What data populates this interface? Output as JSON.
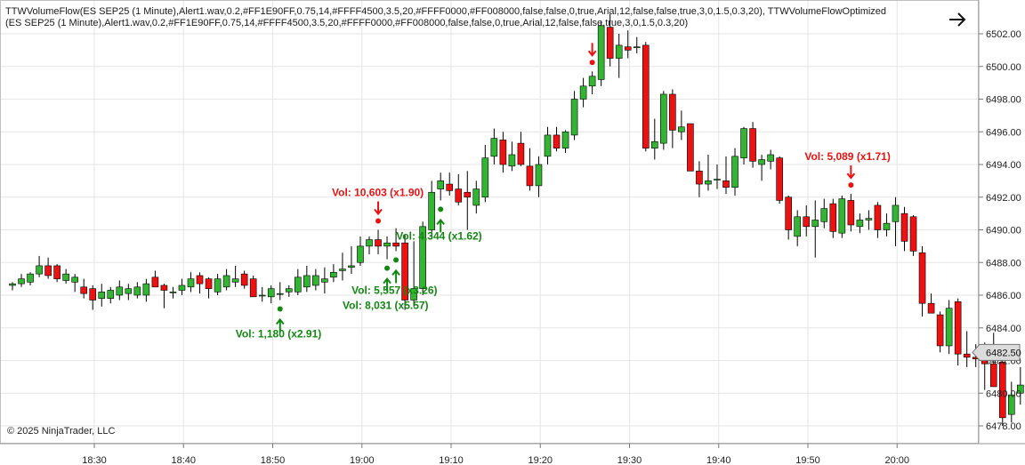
{
  "indicator_label": "TTWVolumeFlow(ES SEP25 (1 Minute),Alert1.wav,0.2,#FF1E90FF,0.75,14,#FFFF4500,3.5,20,#FFFF0000,#FF008000,false,false,0,true,Arial,12,false,false,true,3,0,1.5,0.3,20), TTWVolumeFlowOptimized(ES SEP25 (1 Minute),Alert1.wav,0.2,#FF1E90FF,0.75,14,#FFFF4500,3.5,20,#FFFF0000,#FF008000,false,false,0,true,Arial,12,false,false,true,3,0,1.5,0.3,20)",
  "copyright": "© 2025 NinjaTrader, LLC",
  "nav_icon": "arrow-right-icon",
  "colors": {
    "up": "#33b533",
    "down": "#ee1111",
    "signal_up": "#118811",
    "signal_down": "#ee1111",
    "grid": "#e6e6e6"
  },
  "chart_data": {
    "type": "candlestick",
    "y_ticks": [
      "6478.00",
      "6480.00",
      "6482.00",
      "6484.00",
      "6486.00",
      "6488.00",
      "6490.00",
      "6492.00",
      "6494.00",
      "6496.00",
      "6498.00",
      "6500.00",
      "6502.00"
    ],
    "x_ticks": [
      "18:30",
      "18:40",
      "18:50",
      "19:00",
      "19:10",
      "19:20",
      "19:30",
      "19:40",
      "19:50",
      "20:00"
    ],
    "last_price": "6482.50",
    "ylim": [
      6477.0,
      6504.0
    ],
    "grid": true,
    "candles": [
      [
        6486.6,
        6486.8,
        6486.3,
        6486.7
      ],
      [
        6486.7,
        6487.3,
        6486.5,
        6487.0
      ],
      [
        6486.8,
        6487.4,
        6486.6,
        6487.3
      ],
      [
        6487.3,
        6488.4,
        6487.1,
        6487.8
      ],
      [
        6487.8,
        6488.3,
        6487.0,
        6487.2
      ],
      [
        6487.8,
        6487.9,
        6486.8,
        6487.0
      ],
      [
        6486.9,
        6487.6,
        6486.7,
        6487.3
      ],
      [
        6486.8,
        6487.3,
        6486.2,
        6487.1
      ],
      [
        6486.5,
        6487.0,
        6485.8,
        6486.1
      ],
      [
        6486.4,
        6486.6,
        6485.1,
        6485.7
      ],
      [
        6485.8,
        6486.7,
        6485.3,
        6486.2
      ],
      [
        6485.8,
        6486.5,
        6485.5,
        6486.3
      ],
      [
        6486.0,
        6486.9,
        6485.7,
        6486.5
      ],
      [
        6486.1,
        6486.7,
        6485.7,
        6486.4
      ],
      [
        6486.0,
        6486.8,
        6485.8,
        6486.5
      ],
      [
        6486.0,
        6487.0,
        6485.6,
        6486.7
      ],
      [
        6487.1,
        6487.5,
        6486.5,
        6486.5
      ],
      [
        6486.6,
        6486.7,
        6485.2,
        6486.3
      ],
      [
        6486.2,
        6486.5,
        6485.8,
        6486.2
      ],
      [
        6486.3,
        6487.0,
        6486.0,
        6486.6
      ],
      [
        6486.5,
        6487.4,
        6486.2,
        6487.0
      ],
      [
        6487.2,
        6487.4,
        6486.1,
        6486.7
      ],
      [
        6487.0,
        6487.1,
        6485.8,
        6486.4
      ],
      [
        6486.2,
        6487.3,
        6486.0,
        6487.0
      ],
      [
        6486.5,
        6487.6,
        6486.3,
        6487.2
      ],
      [
        6486.8,
        6487.8,
        6486.5,
        6487.0
      ],
      [
        6487.3,
        6487.5,
        6486.4,
        6486.6
      ],
      [
        6487.0,
        6487.2,
        6485.9,
        6485.9
      ],
      [
        6486.0,
        6486.5,
        6485.6,
        6486.0
      ],
      [
        6485.9,
        6486.6,
        6485.5,
        6486.4
      ],
      [
        6486.1,
        6486.8,
        6485.7,
        6486.1
      ],
      [
        6486.2,
        6486.6,
        6485.9,
        6486.4
      ],
      [
        6486.2,
        6487.6,
        6486.0,
        6487.1
      ],
      [
        6486.5,
        6487.8,
        6486.2,
        6487.2
      ],
      [
        6486.6,
        6487.6,
        6486.3,
        6487.2
      ],
      [
        6486.8,
        6487.7,
        6486.1,
        6487.0
      ],
      [
        6487.1,
        6487.9,
        6486.8,
        6487.4
      ],
      [
        6487.5,
        6488.6,
        6486.9,
        6487.6
      ],
      [
        6487.7,
        6489.0,
        6487.3,
        6487.8
      ],
      [
        6488.0,
        6489.6,
        6487.8,
        6489.0
      ],
      [
        6489.0,
        6489.6,
        6488.5,
        6489.4
      ],
      [
        6489.4,
        6490.0,
        6488.5,
        6489.0
      ],
      [
        6489.0,
        6489.6,
        6488.2,
        6489.2
      ],
      [
        6489.2,
        6490.1,
        6488.7,
        6489.0
      ],
      [
        6489.2,
        6489.7,
        6485.1,
        6485.7
      ],
      [
        6485.7,
        6489.3,
        6485.3,
        6486.4
      ],
      [
        6486.4,
        6490.5,
        6486.0,
        6490.2
      ],
      [
        6490.0,
        6493.0,
        6489.5,
        6492.3
      ],
      [
        6492.5,
        6493.5,
        6491.8,
        6493.0
      ],
      [
        6492.8,
        6493.5,
        6492.1,
        6492.4
      ],
      [
        6492.5,
        6493.4,
        6491.5,
        6491.7
      ],
      [
        6492.3,
        6493.6,
        6490.0,
        6492.0
      ],
      [
        6491.5,
        6493.0,
        6491.0,
        6492.5
      ],
      [
        6492.0,
        6495.2,
        6491.7,
        6494.4
      ],
      [
        6494.5,
        6496.2,
        6494.0,
        6495.6
      ],
      [
        6495.5,
        6496.0,
        6493.5,
        6494.0
      ],
      [
        6493.9,
        6495.4,
        6493.6,
        6494.6
      ],
      [
        6495.3,
        6496.0,
        6493.9,
        6494.0
      ],
      [
        6493.9,
        6495.0,
        6492.4,
        6492.7
      ],
      [
        6492.7,
        6494.5,
        6492.0,
        6494.0
      ],
      [
        6494.5,
        6496.3,
        6494.0,
        6495.8
      ],
      [
        6495.8,
        6496.3,
        6494.8,
        6495.0
      ],
      [
        6495.0,
        6496.1,
        6494.7,
        6496.0
      ],
      [
        6495.8,
        6498.5,
        6495.5,
        6498.0
      ],
      [
        6498.0,
        6499.3,
        6497.5,
        6498.8
      ],
      [
        6498.8,
        6499.7,
        6498.3,
        6499.4
      ],
      [
        6499.2,
        6502.8,
        6498.8,
        6502.5
      ],
      [
        6502.4,
        6503.2,
        6500.0,
        6500.5
      ],
      [
        6500.5,
        6502.0,
        6499.3,
        6501.3
      ],
      [
        6501.2,
        6502.2,
        6500.5,
        6501.0
      ],
      [
        6501.2,
        6501.8,
        6500.8,
        6501.2
      ],
      [
        6501.3,
        6501.5,
        6494.8,
        6495.0
      ],
      [
        6495.0,
        6496.8,
        6494.3,
        6495.4
      ],
      [
        6495.3,
        6498.5,
        6494.9,
        6498.3
      ],
      [
        6498.3,
        6498.6,
        6495.0,
        6496.1
      ],
      [
        6496.0,
        6497.3,
        6495.5,
        6496.3
      ],
      [
        6496.5,
        6496.5,
        6493.6,
        6493.6
      ],
      [
        6493.6,
        6494.2,
        6492.0,
        6492.8
      ],
      [
        6492.8,
        6494.6,
        6492.4,
        6493.0
      ],
      [
        6493.1,
        6494.0,
        6492.5,
        6493.1
      ],
      [
        6493.0,
        6494.5,
        6492.2,
        6492.6
      ],
      [
        6492.6,
        6495.0,
        6492.1,
        6494.5
      ],
      [
        6494.4,
        6496.3,
        6494.0,
        6496.2
      ],
      [
        6496.2,
        6496.6,
        6493.8,
        6494.2
      ],
      [
        6494.0,
        6494.6,
        6493.0,
        6494.3
      ],
      [
        6494.2,
        6494.9,
        6493.7,
        6494.6
      ],
      [
        6494.4,
        6494.5,
        6491.6,
        6491.8
      ],
      [
        6492.0,
        6492.1,
        6489.4,
        6490.0
      ],
      [
        6489.6,
        6491.2,
        6489.0,
        6490.8
      ],
      [
        6490.8,
        6491.5,
        6489.6,
        6490.2
      ],
      [
        6490.2,
        6491.8,
        6488.3,
        6490.6
      ],
      [
        6490.5,
        6491.9,
        6490.1,
        6491.3
      ],
      [
        6491.6,
        6491.9,
        6489.5,
        6489.9
      ],
      [
        6489.8,
        6492.1,
        6489.5,
        6491.9
      ],
      [
        6491.8,
        6492.2,
        6489.9,
        6490.3
      ],
      [
        6490.2,
        6491.0,
        6489.8,
        6490.6
      ],
      [
        6490.6,
        6491.2,
        6490.0,
        6490.7
      ],
      [
        6491.5,
        6491.7,
        6489.5,
        6490.0
      ],
      [
        6490.0,
        6491.0,
        6489.6,
        6490.4
      ],
      [
        6490.5,
        6492.0,
        6489.0,
        6491.5
      ],
      [
        6491.0,
        6491.4,
        6488.7,
        6489.3
      ],
      [
        6490.8,
        6490.9,
        6488.4,
        6488.7
      ],
      [
        6488.6,
        6489.0,
        6484.7,
        6485.5
      ],
      [
        6485.5,
        6486.1,
        6484.9,
        6484.9
      ],
      [
        6484.8,
        6485.0,
        6482.5,
        6482.9
      ],
      [
        6482.9,
        6485.7,
        6482.4,
        6485.2
      ],
      [
        6485.6,
        6485.8,
        6481.7,
        6482.4
      ],
      [
        6482.4,
        6483.8,
        6481.6,
        6482.2
      ],
      [
        6482.2,
        6483.0,
        6481.6,
        6482.1
      ],
      [
        6482.4,
        6483.1,
        6480.2,
        6481.8
      ],
      [
        6481.8,
        6483.7,
        6480.4,
        6480.4
      ],
      [
        6481.9,
        6482.4,
        6478.0,
        6478.5
      ],
      [
        6478.7,
        6480.7,
        6478.2,
        6479.9
      ],
      [
        6480.0,
        6481.6,
        6479.3,
        6480.5
      ],
      [
        6480.4,
        6480.9,
        6479.7,
        6480.1
      ],
      [
        6480.3,
        6481.4,
        6480.0,
        6480.9
      ],
      [
        6480.9,
        6482.8,
        6478.2,
        6482.5
      ],
      [
        6482.0,
        6482.6,
        6480.9,
        6481.4
      ],
      [
        6481.3,
        6483.0,
        6481.0,
        6482.3
      ],
      [
        6482.3,
        6483.9,
        6481.8,
        6482.5
      ]
    ],
    "signals": [
      {
        "candle": 30,
        "dir": "up",
        "text": "Vol: 1,180  (x2.91)"
      },
      {
        "candle": 41,
        "dir": "down",
        "text": "Vol: 10,603  (x1.90)"
      },
      {
        "candle": 42,
        "dir": "up",
        "text": "Vol: 8,031  (x5.57)"
      },
      {
        "candle": 43,
        "dir": "up",
        "text": "Vol: 5,557  (x3.26)"
      },
      {
        "candle": 48,
        "dir": "up",
        "text": "Vol: 4,344  (x1.62)"
      },
      {
        "candle": 65,
        "dir": "down",
        "text": ""
      },
      {
        "candle": 94,
        "dir": "down",
        "text": "Vol: 5,089  (x1.71)"
      }
    ]
  }
}
